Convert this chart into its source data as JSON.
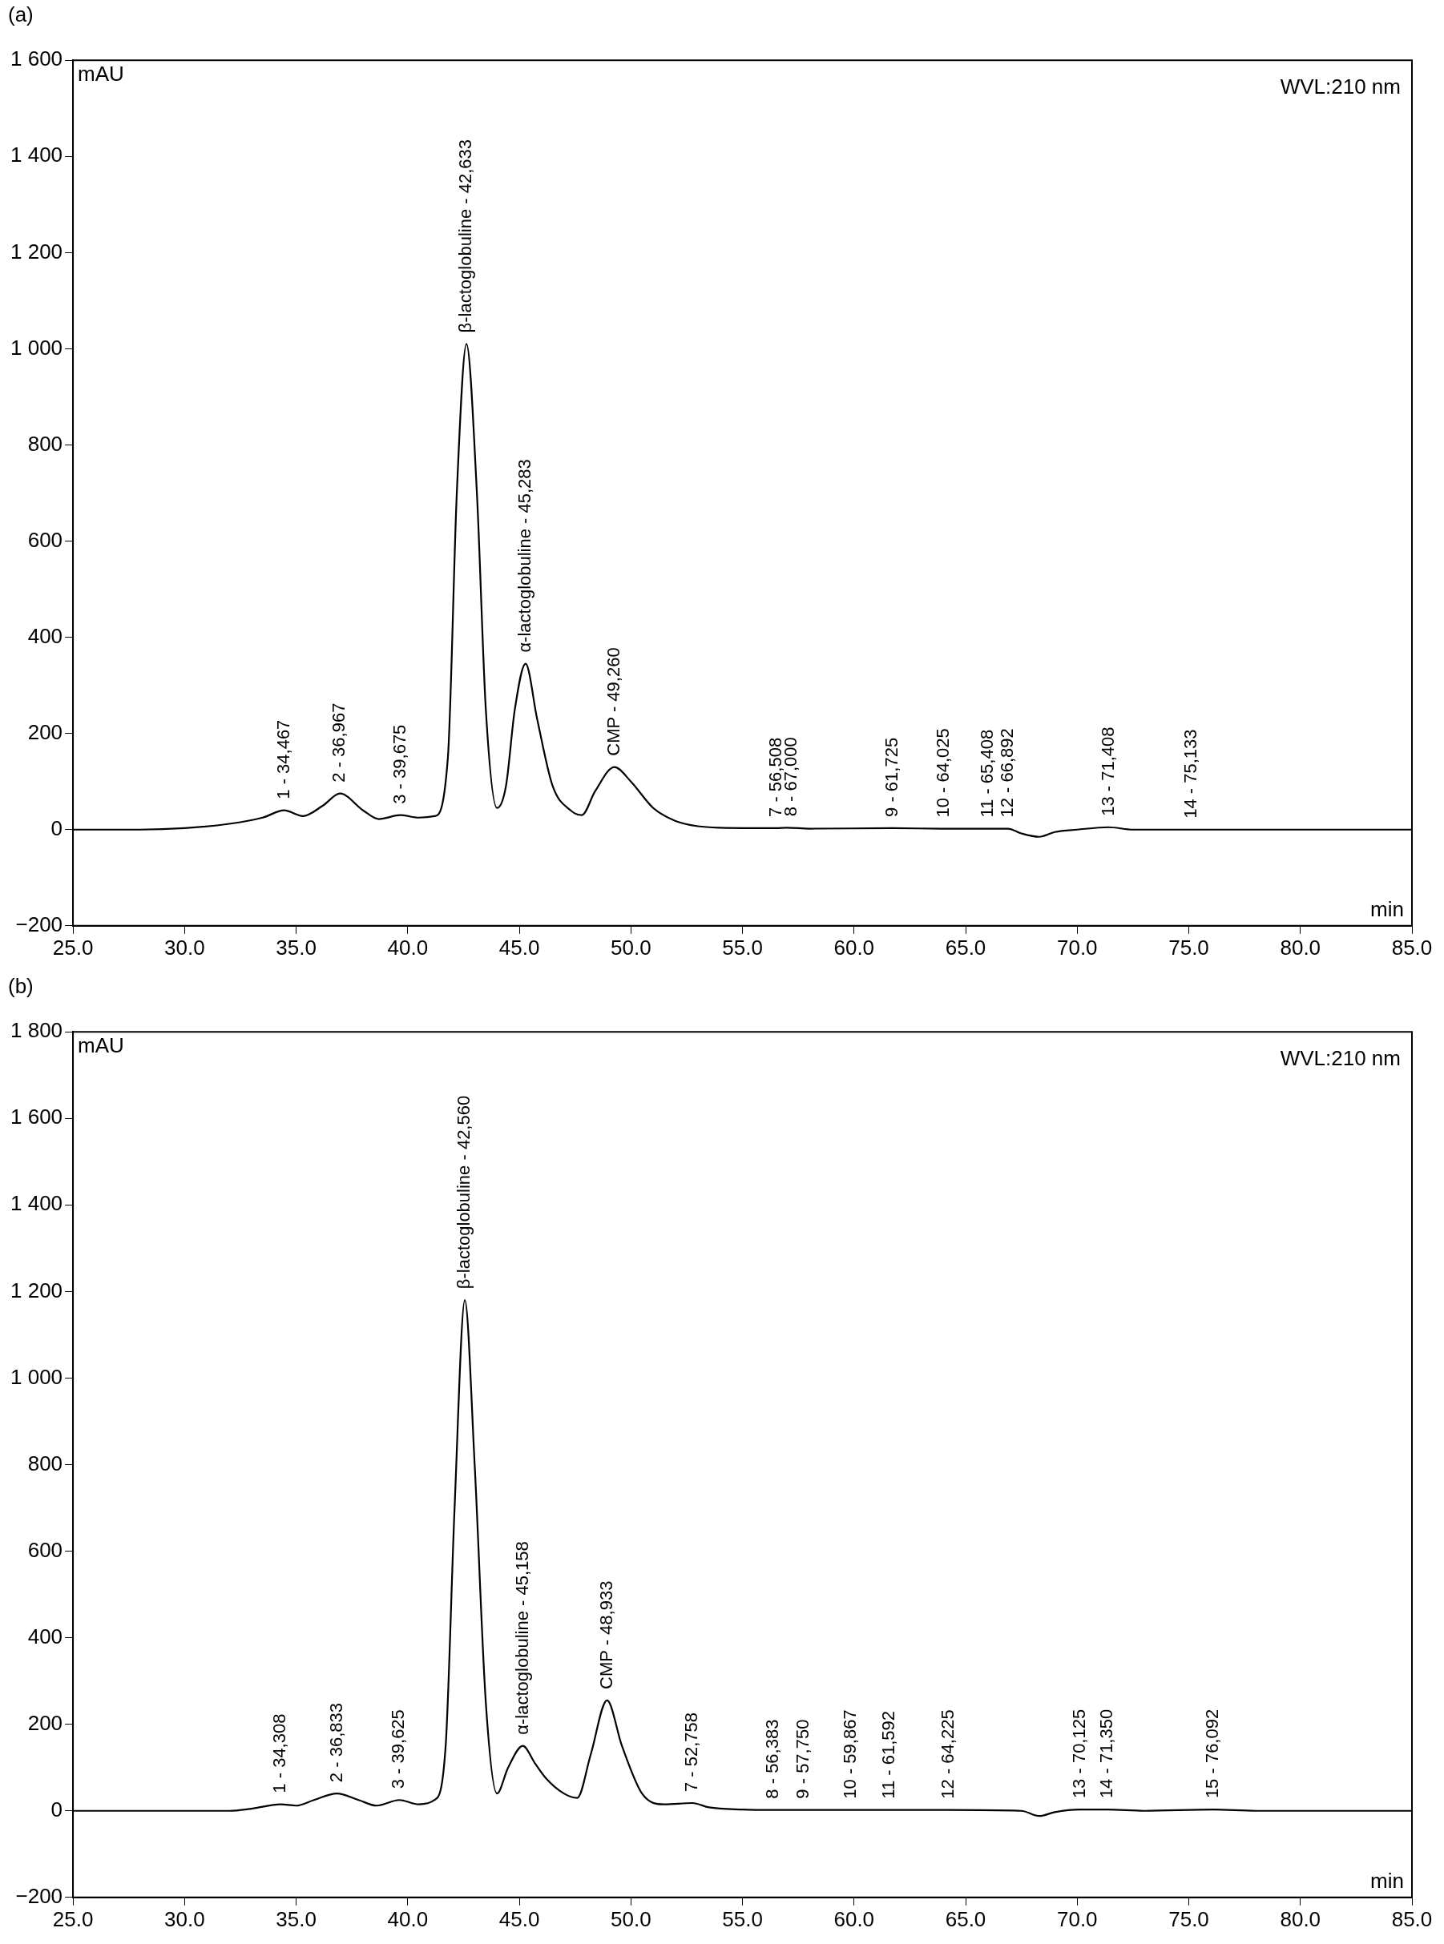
{
  "chart_data": [
    {
      "type": "line",
      "title": "(a)",
      "xlabel": "min",
      "ylabel": "mAU",
      "grid": false,
      "legend": false,
      "marker": "none",
      "line_style": "solid",
      "xlim": [
        25,
        85
      ],
      "xticks": [
        {
          "value": 25,
          "label": "25.0"
        },
        {
          "value": 30,
          "label": "30.0"
        },
        {
          "value": 35,
          "label": "35.0"
        },
        {
          "value": 40,
          "label": "40.0"
        },
        {
          "value": 45,
          "label": "45.0"
        },
        {
          "value": 50,
          "label": "50.0"
        },
        {
          "value": 55,
          "label": "55.0"
        },
        {
          "value": 60,
          "label": "60.0"
        },
        {
          "value": 65,
          "label": "65.0"
        },
        {
          "value": 70,
          "label": "70.0"
        },
        {
          "value": 75,
          "label": "75.0"
        },
        {
          "value": 80,
          "label": "80.0"
        },
        {
          "value": 85,
          "label": "85.0"
        }
      ],
      "ylim": [
        -200,
        1600
      ],
      "yticks": [
        {
          "value": -200,
          "label": "−200"
        },
        0,
        200,
        400,
        600,
        800,
        {
          "value": 1000,
          "label": "1 000"
        },
        {
          "value": 1200,
          "label": "1 200"
        },
        {
          "value": 1400,
          "label": "1 400"
        },
        {
          "value": 1600,
          "label": "1 600"
        }
      ],
      "series": [
        {
          "color": "#000000",
          "x": [
            25,
            28,
            30,
            32,
            33.5,
            34.467,
            35.3,
            36.2,
            36.967,
            38,
            38.7,
            39.675,
            40.5,
            41.2,
            41.8,
            42.2,
            42.633,
            43.1,
            43.5,
            44,
            44.4,
            44.8,
            45.283,
            45.8,
            46.5,
            47.3,
            47.8,
            48.4,
            49.26,
            50,
            51,
            52,
            53,
            54,
            56.5,
            57,
            58,
            61.7,
            64,
            66.9,
            67.5,
            68.3,
            69,
            70,
            71.4,
            72.5,
            75.1,
            85
          ],
          "values": [
            0,
            0,
            3,
            12,
            25,
            40,
            28,
            50,
            75,
            40,
            22,
            30,
            25,
            28,
            150,
            700,
            1010,
            700,
            250,
            45,
            90,
            250,
            345,
            230,
            90,
            40,
            30,
            80,
            130,
            100,
            45,
            18,
            7,
            4,
            3,
            4,
            2,
            3,
            2,
            2,
            -8,
            -15,
            -5,
            0,
            5,
            0,
            0,
            0
          ]
        }
      ],
      "annotations": [
        "WVL:210 nm",
        {
          "text": "1 - 34,467",
          "x": 34.467,
          "y": 40
        },
        {
          "text": "2 - 36,967",
          "x": 36.967,
          "y": 75
        },
        {
          "text": "3 - 39,675",
          "x": 39.675,
          "y": 30
        },
        {
          "text": "β-lactoglobuline - 42,633",
          "x": 42.633,
          "y": 1010
        },
        {
          "text": "α-lactoglobuline - 45,283",
          "x": 45.283,
          "y": 345
        },
        {
          "text": "CMP - 49,260",
          "x": 49.26,
          "y": 130
        },
        {
          "text": "7 - 56,508",
          "x": 56.508,
          "y": 3
        },
        {
          "text": "8 - 67,000",
          "x": 57.2,
          "y": 4
        },
        {
          "text": "9 - 61,725",
          "x": 61.725,
          "y": 3
        },
        {
          "text": "10 - 64,025",
          "x": 64.025,
          "y": 2
        },
        {
          "text": "11 - 65,408",
          "x": 66.0,
          "y": 2
        },
        {
          "text": "12 - 66,892",
          "x": 66.892,
          "y": 2
        },
        {
          "text": "13 - 71,408",
          "x": 71.408,
          "y": 5
        },
        {
          "text": "14 - 75,133",
          "x": 75.133,
          "y": 0
        }
      ]
    },
    {
      "type": "line",
      "title": "(b)",
      "xlabel": "min",
      "ylabel": "mAU",
      "grid": false,
      "legend": false,
      "marker": "none",
      "line_style": "solid",
      "xlim": [
        25,
        85
      ],
      "xticks": [
        {
          "value": 25,
          "label": "25.0"
        },
        {
          "value": 30,
          "label": "30.0"
        },
        {
          "value": 35,
          "label": "35.0"
        },
        {
          "value": 40,
          "label": "40.0"
        },
        {
          "value": 45,
          "label": "45.0"
        },
        {
          "value": 50,
          "label": "50.0"
        },
        {
          "value": 55,
          "label": "55.0"
        },
        {
          "value": 60,
          "label": "60.0"
        },
        {
          "value": 65,
          "label": "65.0"
        },
        {
          "value": 70,
          "label": "70.0"
        },
        {
          "value": 75,
          "label": "75.0"
        },
        {
          "value": 80,
          "label": "80.0"
        },
        {
          "value": 85,
          "label": "85.0"
        }
      ],
      "ylim": [
        -200,
        1800
      ],
      "yticks": [
        {
          "value": -200,
          "label": "−200"
        },
        0,
        200,
        400,
        600,
        800,
        {
          "value": 1000,
          "label": "1 000"
        },
        {
          "value": 1200,
          "label": "1 200"
        },
        {
          "value": 1400,
          "label": "1 400"
        },
        {
          "value": 1600,
          "label": "1 600"
        },
        {
          "value": 1800,
          "label": "1 800"
        }
      ],
      "series": [
        {
          "color": "#000000",
          "x": [
            25,
            32,
            33,
            34.308,
            35,
            35.8,
            36.833,
            37.8,
            38.6,
            39.625,
            40.5,
            41.2,
            41.7,
            42.1,
            42.56,
            43,
            43.5,
            44,
            44.5,
            45.158,
            45.7,
            46.2,
            47,
            47.6,
            48.2,
            48.933,
            49.6,
            50.5,
            51.5,
            52.758,
            53.5,
            55,
            56.4,
            60,
            64.2,
            67.5,
            68.3,
            69,
            70.1,
            71.35,
            73,
            76.1,
            78,
            85
          ],
          "values": [
            0,
            0,
            5,
            15,
            12,
            25,
            40,
            25,
            12,
            25,
            15,
            25,
            150,
            700,
            1180,
            800,
            250,
            40,
            100,
            150,
            110,
            75,
            40,
            30,
            130,
            255,
            150,
            40,
            15,
            18,
            8,
            3,
            2,
            2,
            2,
            0,
            -12,
            -3,
            3,
            3,
            0,
            3,
            0,
            0
          ]
        }
      ],
      "annotations": [
        "WVL:210 nm",
        {
          "text": "1 - 34,308",
          "x": 34.308,
          "y": 15
        },
        {
          "text": "2 - 36,833",
          "x": 36.833,
          "y": 40
        },
        {
          "text": "3 - 39,625",
          "x": 39.625,
          "y": 25
        },
        {
          "text": "β-lactoglobuline - 42,560",
          "x": 42.56,
          "y": 1180
        },
        {
          "text": "α-lactoglobuline - 45,158",
          "x": 45.158,
          "y": 150
        },
        {
          "text": "CMP - 48,933",
          "x": 48.933,
          "y": 255
        },
        {
          "text": "7 - 52,758",
          "x": 52.758,
          "y": 18
        },
        {
          "text": "8 - 56,383",
          "x": 56.383,
          "y": 2
        },
        {
          "text": "9 - 57,750",
          "x": 57.75,
          "y": 2
        },
        {
          "text": "10 - 59,867",
          "x": 59.867,
          "y": 2
        },
        {
          "text": "11 - 61,592",
          "x": 61.592,
          "y": 2
        },
        {
          "text": "12 - 64,225",
          "x": 64.225,
          "y": 2
        },
        {
          "text": "13 - 70,125",
          "x": 70.125,
          "y": 3
        },
        {
          "text": "14 - 71,350",
          "x": 71.35,
          "y": 3
        },
        {
          "text": "15 - 76,092",
          "x": 76.092,
          "y": 3
        }
      ]
    }
  ]
}
